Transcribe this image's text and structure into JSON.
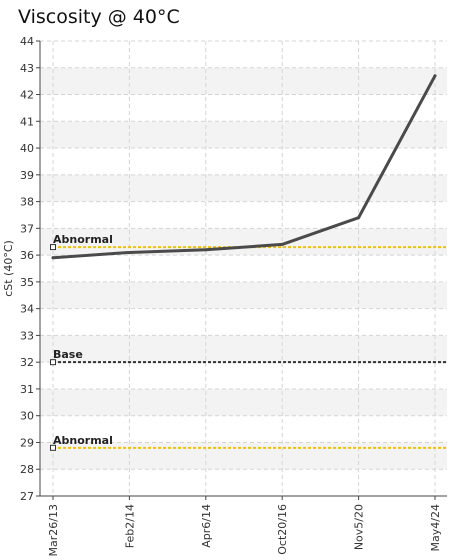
{
  "chart_data": {
    "type": "line",
    "title": "Viscosity @ 40°C",
    "xlabel": "",
    "ylabel": "cSt (40°C)",
    "ylim": [
      27,
      44
    ],
    "yticks": [
      27,
      28,
      29,
      30,
      31,
      32,
      33,
      34,
      35,
      36,
      37,
      38,
      39,
      40,
      41,
      42,
      43,
      44
    ],
    "categories": [
      "Mar26/13",
      "Feb2/14",
      "Apr6/14",
      "Oct20/16",
      "Nov5/20",
      "May4/24"
    ],
    "series": [
      {
        "values": [
          35.9,
          36.1,
          36.2,
          36.4,
          37.4,
          42.7
        ],
        "color": "#4a4a4a"
      }
    ],
    "reference_lines": [
      {
        "label": "Abnormal",
        "value": 36.3,
        "color": "#f2c200"
      },
      {
        "label": "Base",
        "value": 32.0,
        "color": "#333333"
      },
      {
        "label": "Abnormal",
        "value": 28.8,
        "color": "#f2c200"
      }
    ],
    "grid": true,
    "band_colors": [
      "#ffffff",
      "#f3f3f3"
    ],
    "grid_color": "#d4d4d4"
  }
}
